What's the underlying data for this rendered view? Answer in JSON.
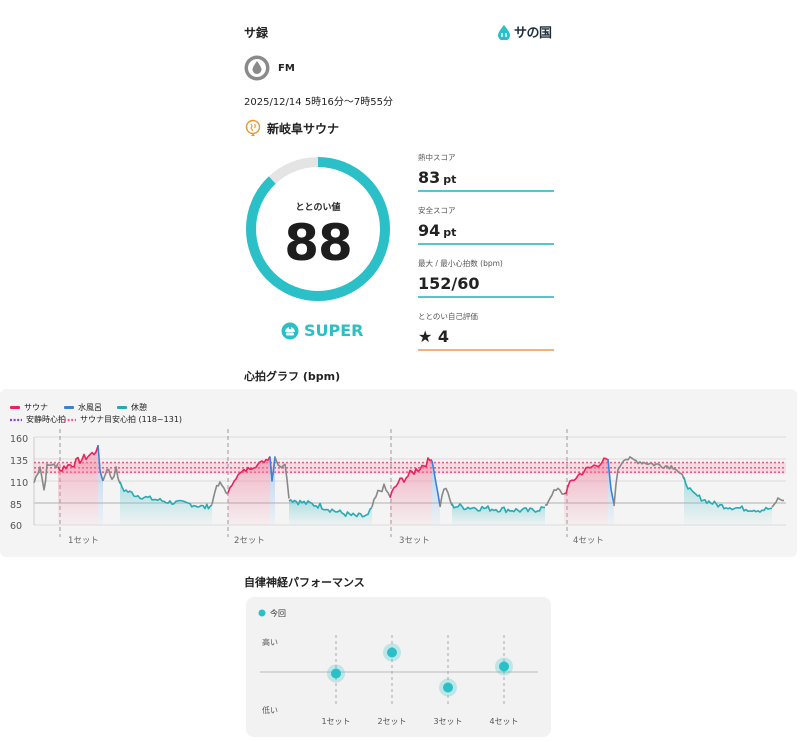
{
  "header": {
    "title": "サ録",
    "brand": "サの国"
  },
  "user": {
    "name": "FM"
  },
  "session": {
    "datetime": "2025/12/14 5時16分〜7時55分"
  },
  "facility": {
    "name": "新岐阜サウナ"
  },
  "totonoi": {
    "label": "ととのい値",
    "value": "88",
    "percent": 88,
    "rank": "SUPER"
  },
  "stats": [
    {
      "label": "熱中スコア",
      "value": "83",
      "unit": "pt"
    },
    {
      "label": "安全スコア",
      "value": "94",
      "unit": "pt"
    },
    {
      "label": "最大 / 最小心拍数 (bpm)",
      "value": "152/60",
      "unit": ""
    },
    {
      "label": "ととのい自己評価",
      "value": "★ 4",
      "unit": ""
    }
  ],
  "hr_chart": {
    "title": "心拍グラフ (bpm)",
    "legend": {
      "sauna": "サウナ",
      "cold": "水風呂",
      "rest": "休憩",
      "resting": "安静時心拍",
      "target": "サウナ目安心拍 (118~131)"
    },
    "y_ticks": [
      "160",
      "135",
      "110",
      "85",
      "60"
    ],
    "set_labels": [
      "1セット",
      "2セット",
      "3セット",
      "4セット"
    ],
    "colors": {
      "sauna": "#e8245f",
      "cold": "#3b82d6",
      "rest": "#29a9b3",
      "other": "#888888",
      "resting": "#8b3fd9",
      "target": "#f25b8a"
    }
  },
  "ans": {
    "title": "自律神経パフォーマンス",
    "legend": "今回",
    "high": "高い",
    "low": "低い",
    "sets": [
      "1セット",
      "2セット",
      "3セット",
      "4セット"
    ],
    "levels": [
      0.45,
      0.75,
      0.25,
      0.55
    ],
    "color": "#29c0c8"
  }
}
